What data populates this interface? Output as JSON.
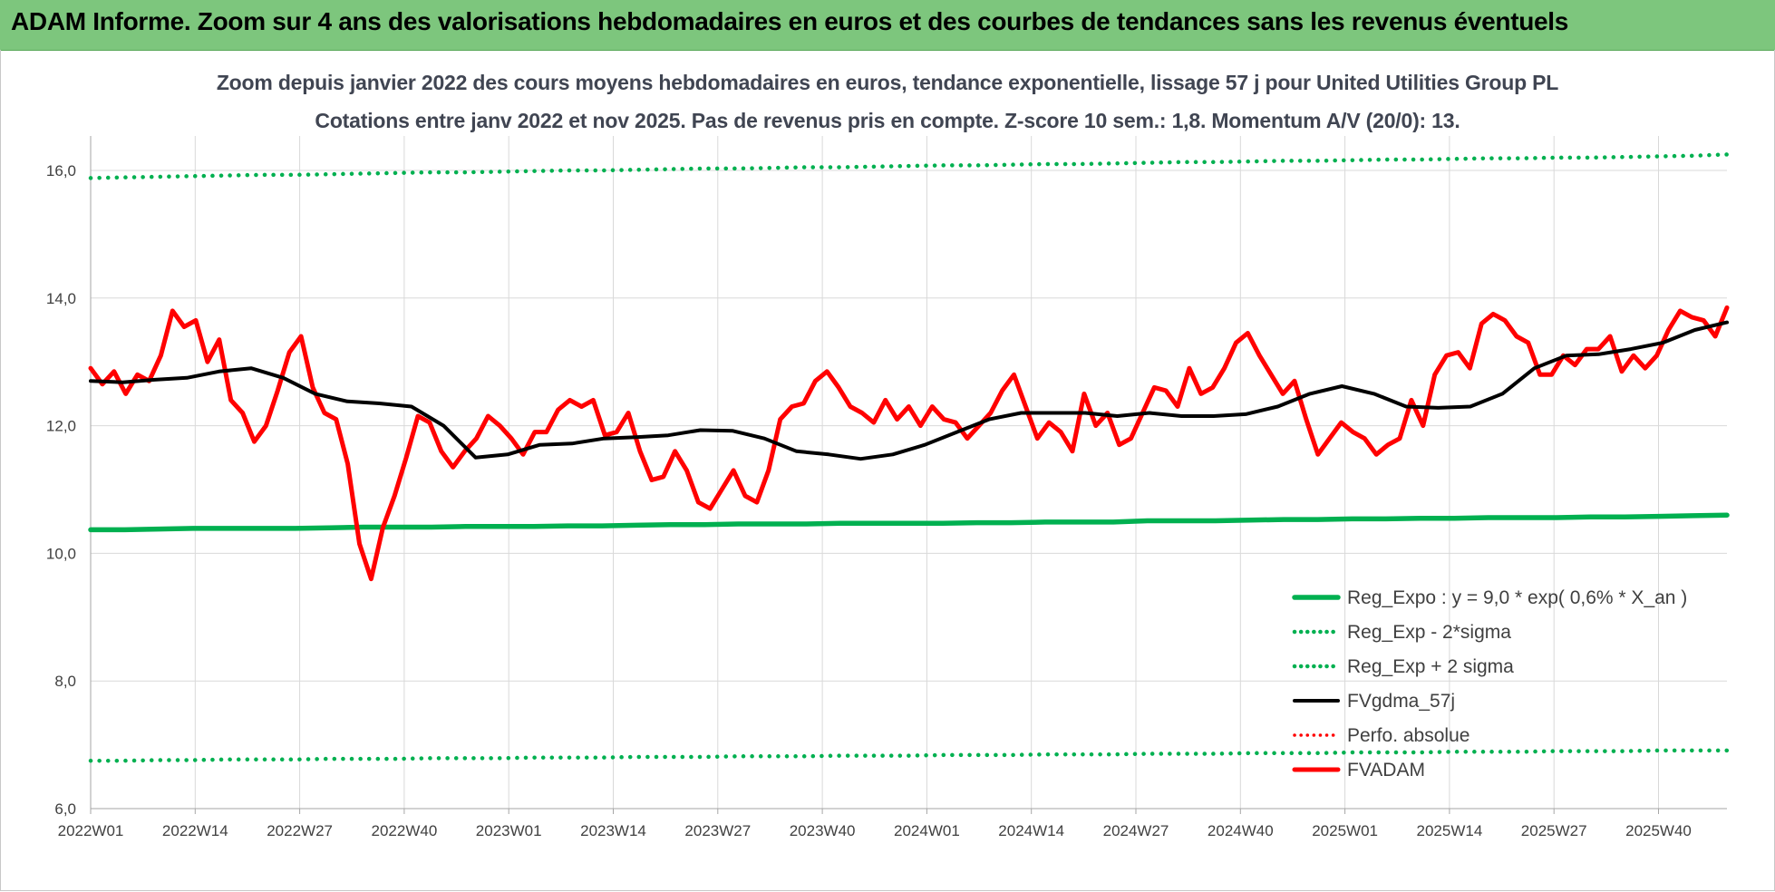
{
  "banner": {
    "title": "ADAM Informe. Zoom sur 4 ans des valorisations hebdomadaires en euros et des courbes de tendances sans les revenus éventuels"
  },
  "chart_data": {
    "type": "line",
    "title": "Zoom depuis janvier 2022 des cours moyens hebdomadaires en euros, tendance exponentielle, lissage 57 j pour United Utilities Group PL",
    "subtitle": "Cotations entre janv 2022 et nov 2025. Pas de revenus pris en compte. Z-score 10 sem.: 1,8. Momentum A/V (20/0): 13.",
    "x_tick_labels": [
      "2022W01",
      "2022W14",
      "2022W27",
      "2022W40",
      "2023W01",
      "2023W14",
      "2023W27",
      "2023W40",
      "2024W01",
      "2024W14",
      "2024W27",
      "2024W40",
      "2025W01",
      "2025W14",
      "2025W27",
      "2025W40"
    ],
    "y_tick_labels": [
      "6,0",
      "8,0",
      "10,0",
      "12,0",
      "14,0",
      "16,0"
    ],
    "ylim": [
      6,
      16.8
    ],
    "grid": true,
    "legend_position": "bottom-right",
    "colors": {
      "green": "#00b050",
      "black": "#000000",
      "red": "#ff0000"
    },
    "series": [
      {
        "name": "Reg_Expo : y = 9,0 * exp( 0,6% *  X_an )",
        "style": "solid",
        "color": "#00b050",
        "values": [
          10.37,
          10.37,
          10.38,
          10.39,
          10.39,
          10.39,
          10.39,
          10.4,
          10.41,
          10.41,
          10.41,
          10.42,
          10.42,
          10.42,
          10.43,
          10.43,
          10.44,
          10.45,
          10.45,
          10.46,
          10.46,
          10.46,
          10.47,
          10.47,
          10.47,
          10.47,
          10.48,
          10.48,
          10.49,
          10.49,
          10.49,
          10.51,
          10.51,
          10.51,
          10.52,
          10.53,
          10.53,
          10.54,
          10.54,
          10.55,
          10.55,
          10.56,
          10.56,
          10.56,
          10.57,
          10.57,
          10.58,
          10.59,
          10.6
        ]
      },
      {
        "name": "Reg_Exp - 2*sigma",
        "style": "dotted",
        "color": "#00b050",
        "values": [
          6.75,
          6.75,
          6.76,
          6.76,
          6.77,
          6.77,
          6.77,
          6.78,
          6.78,
          6.78,
          6.79,
          6.79,
          6.79,
          6.8,
          6.8,
          6.8,
          6.81,
          6.81,
          6.81,
          6.82,
          6.82,
          6.82,
          6.83,
          6.83,
          6.83,
          6.84,
          6.84,
          6.84,
          6.85,
          6.85,
          6.85,
          6.86,
          6.86,
          6.86,
          6.87,
          6.87,
          6.87,
          6.88,
          6.88,
          6.88,
          6.89,
          6.89,
          6.89,
          6.9,
          6.9,
          6.9,
          6.91,
          6.91,
          6.91
        ]
      },
      {
        "name": "Reg_Exp + 2 sigma",
        "style": "dotted",
        "color": "#00b050",
        "values": [
          15.88,
          15.89,
          15.9,
          15.91,
          15.92,
          15.93,
          15.93,
          15.94,
          15.95,
          15.96,
          15.97,
          15.97,
          15.98,
          15.99,
          16.0,
          16.0,
          16.01,
          16.02,
          16.03,
          16.03,
          16.04,
          16.05,
          16.05,
          16.06,
          16.07,
          16.08,
          16.08,
          16.09,
          16.1,
          16.1,
          16.11,
          16.12,
          16.13,
          16.13,
          16.14,
          16.15,
          16.15,
          16.16,
          16.17,
          16.17,
          16.18,
          16.19,
          16.19,
          16.2,
          16.2,
          16.21,
          16.22,
          16.23,
          16.25
        ]
      },
      {
        "name": "FVgdma_57j",
        "style": "solid",
        "color": "#000000",
        "values": [
          12.7,
          12.68,
          12.72,
          12.75,
          12.85,
          12.9,
          12.75,
          12.5,
          12.38,
          12.35,
          12.3,
          12.0,
          11.5,
          11.55,
          11.7,
          11.72,
          11.8,
          11.82,
          11.85,
          11.93,
          11.92,
          11.8,
          11.6,
          11.55,
          11.48,
          11.55,
          11.7,
          11.9,
          12.1,
          12.2,
          12.2,
          12.2,
          12.15,
          12.2,
          12.15,
          12.15,
          12.18,
          12.3,
          12.5,
          12.62,
          12.5,
          12.3,
          12.28,
          12.3,
          12.5,
          12.9,
          13.1,
          13.12,
          13.2,
          13.3,
          13.5,
          13.62
        ]
      },
      {
        "name": "Perfo. absolue",
        "style": "dotted",
        "color": "#ff0000",
        "values": []
      },
      {
        "name": "FVADAM",
        "style": "solid",
        "color": "#ff0000",
        "values": [
          12.9,
          12.65,
          12.85,
          12.5,
          12.8,
          12.7,
          13.1,
          13.8,
          13.55,
          13.65,
          13.0,
          13.35,
          12.4,
          12.2,
          11.75,
          12.0,
          12.55,
          13.15,
          13.4,
          12.6,
          12.2,
          12.1,
          11.4,
          10.15,
          9.6,
          10.4,
          10.9,
          11.5,
          12.15,
          12.05,
          11.6,
          11.35,
          11.6,
          11.8,
          12.15,
          12.0,
          11.8,
          11.55,
          11.9,
          11.9,
          12.25,
          12.4,
          12.3,
          12.4,
          11.85,
          11.9,
          12.2,
          11.6,
          11.15,
          11.2,
          11.6,
          11.3,
          10.8,
          10.7,
          11.0,
          11.3,
          10.9,
          10.8,
          11.3,
          12.1,
          12.3,
          12.35,
          12.7,
          12.85,
          12.6,
          12.3,
          12.2,
          12.05,
          12.4,
          12.1,
          12.3,
          12.0,
          12.3,
          12.1,
          12.05,
          11.8,
          12.0,
          12.2,
          12.55,
          12.8,
          12.3,
          11.8,
          12.05,
          11.9,
          11.6,
          12.5,
          12.0,
          12.2,
          11.7,
          11.8,
          12.2,
          12.6,
          12.55,
          12.3,
          12.9,
          12.5,
          12.6,
          12.9,
          13.3,
          13.45,
          13.1,
          12.8,
          12.5,
          12.7,
          12.1,
          11.55,
          11.8,
          12.05,
          11.9,
          11.8,
          11.55,
          11.7,
          11.8,
          12.4,
          12.0,
          12.8,
          13.1,
          13.15,
          12.9,
          13.6,
          13.75,
          13.65,
          13.4,
          13.3,
          12.8,
          12.8,
          13.1,
          12.95,
          13.2,
          13.2,
          13.4,
          12.85,
          13.1,
          12.9,
          13.1,
          13.5,
          13.8,
          13.7,
          13.65,
          13.4,
          13.85
        ]
      }
    ]
  }
}
